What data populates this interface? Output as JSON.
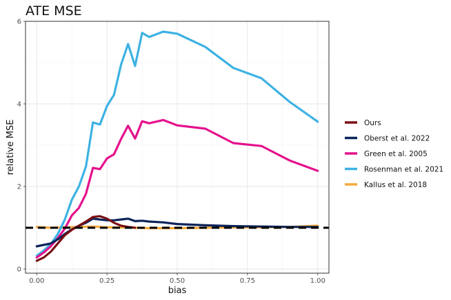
{
  "chart_data": {
    "type": "line",
    "title": "ATE MSE",
    "xlabel": "bias",
    "ylabel": "relative MSE",
    "xlim": [
      -0.04,
      1.04
    ],
    "ylim": [
      -0.1,
      6.0
    ],
    "xticks": [
      0.0,
      0.25,
      0.5,
      0.75,
      1.0
    ],
    "xtick_labels": [
      "0.00",
      "0.25",
      "0.50",
      "0.75",
      "1.00"
    ],
    "yticks": [
      0,
      2,
      4,
      6
    ],
    "ytick_labels": [
      "0",
      "2",
      "4",
      "6"
    ],
    "grid": true,
    "legend_position": "right",
    "reference_line": {
      "y": 1.0,
      "style": "dashed",
      "color": "#000000"
    },
    "series": [
      {
        "name": "Ours",
        "color": "#7a0f14",
        "x": [
          0.0,
          0.025,
          0.05,
          0.075,
          0.1,
          0.125,
          0.15,
          0.175,
          0.2,
          0.225,
          0.25,
          0.275,
          0.3,
          0.325,
          0.35
        ],
        "y": [
          0.2,
          0.28,
          0.42,
          0.62,
          0.82,
          0.95,
          1.05,
          1.15,
          1.26,
          1.28,
          1.22,
          1.12,
          1.05,
          1.02,
          1.0
        ]
      },
      {
        "name": "Oberst et al. 2022",
        "color": "#0b2359",
        "x": [
          0.0,
          0.05,
          0.075,
          0.1,
          0.125,
          0.15,
          0.175,
          0.2,
          0.225,
          0.25,
          0.275,
          0.3,
          0.325,
          0.35,
          0.375,
          0.4,
          0.45,
          0.5,
          0.6,
          0.7,
          0.8,
          0.9,
          1.0
        ],
        "y": [
          0.55,
          0.62,
          0.72,
          0.85,
          0.96,
          1.05,
          1.12,
          1.22,
          1.2,
          1.18,
          1.18,
          1.2,
          1.22,
          1.16,
          1.17,
          1.15,
          1.13,
          1.09,
          1.06,
          1.04,
          1.03,
          1.02,
          1.02
        ]
      },
      {
        "name": "Green et al. 2005",
        "color": "#e5118c",
        "x": [
          0.0,
          0.025,
          0.05,
          0.075,
          0.1,
          0.125,
          0.15,
          0.175,
          0.2,
          0.225,
          0.25,
          0.275,
          0.3,
          0.325,
          0.35,
          0.375,
          0.4,
          0.45,
          0.5,
          0.6,
          0.7,
          0.8,
          0.9,
          1.0
        ],
        "y": [
          0.28,
          0.4,
          0.55,
          0.75,
          0.98,
          1.3,
          1.48,
          1.82,
          2.45,
          2.42,
          2.68,
          2.78,
          3.15,
          3.47,
          3.16,
          3.58,
          3.53,
          3.61,
          3.48,
          3.4,
          3.05,
          2.98,
          2.63,
          2.38
        ]
      },
      {
        "name": "Rosenman et al. 2021",
        "color": "#3db2e3",
        "x": [
          0.0,
          0.025,
          0.05,
          0.075,
          0.1,
          0.125,
          0.15,
          0.175,
          0.2,
          0.225,
          0.25,
          0.275,
          0.3,
          0.325,
          0.35,
          0.375,
          0.4,
          0.45,
          0.5,
          0.6,
          0.7,
          0.8,
          0.9,
          1.0
        ],
        "y": [
          0.32,
          0.45,
          0.6,
          0.85,
          1.2,
          1.68,
          2.0,
          2.48,
          3.55,
          3.5,
          3.95,
          4.22,
          4.95,
          5.45,
          4.92,
          5.72,
          5.62,
          5.75,
          5.7,
          5.38,
          4.87,
          4.62,
          4.05,
          3.57
        ]
      },
      {
        "name": "Kallus et al. 2018",
        "color": "#f7a93a",
        "x": [
          0.0,
          0.05,
          0.1,
          0.15,
          0.2,
          0.25,
          0.3,
          0.35,
          0.4,
          0.5,
          0.6,
          0.7,
          0.8,
          0.9,
          1.0
        ],
        "y": [
          1.02,
          1.0,
          1.01,
          1.02,
          1.03,
          1.01,
          1.01,
          1.0,
          0.99,
          0.99,
          1.0,
          1.01,
          1.01,
          1.02,
          1.05
        ]
      }
    ]
  }
}
